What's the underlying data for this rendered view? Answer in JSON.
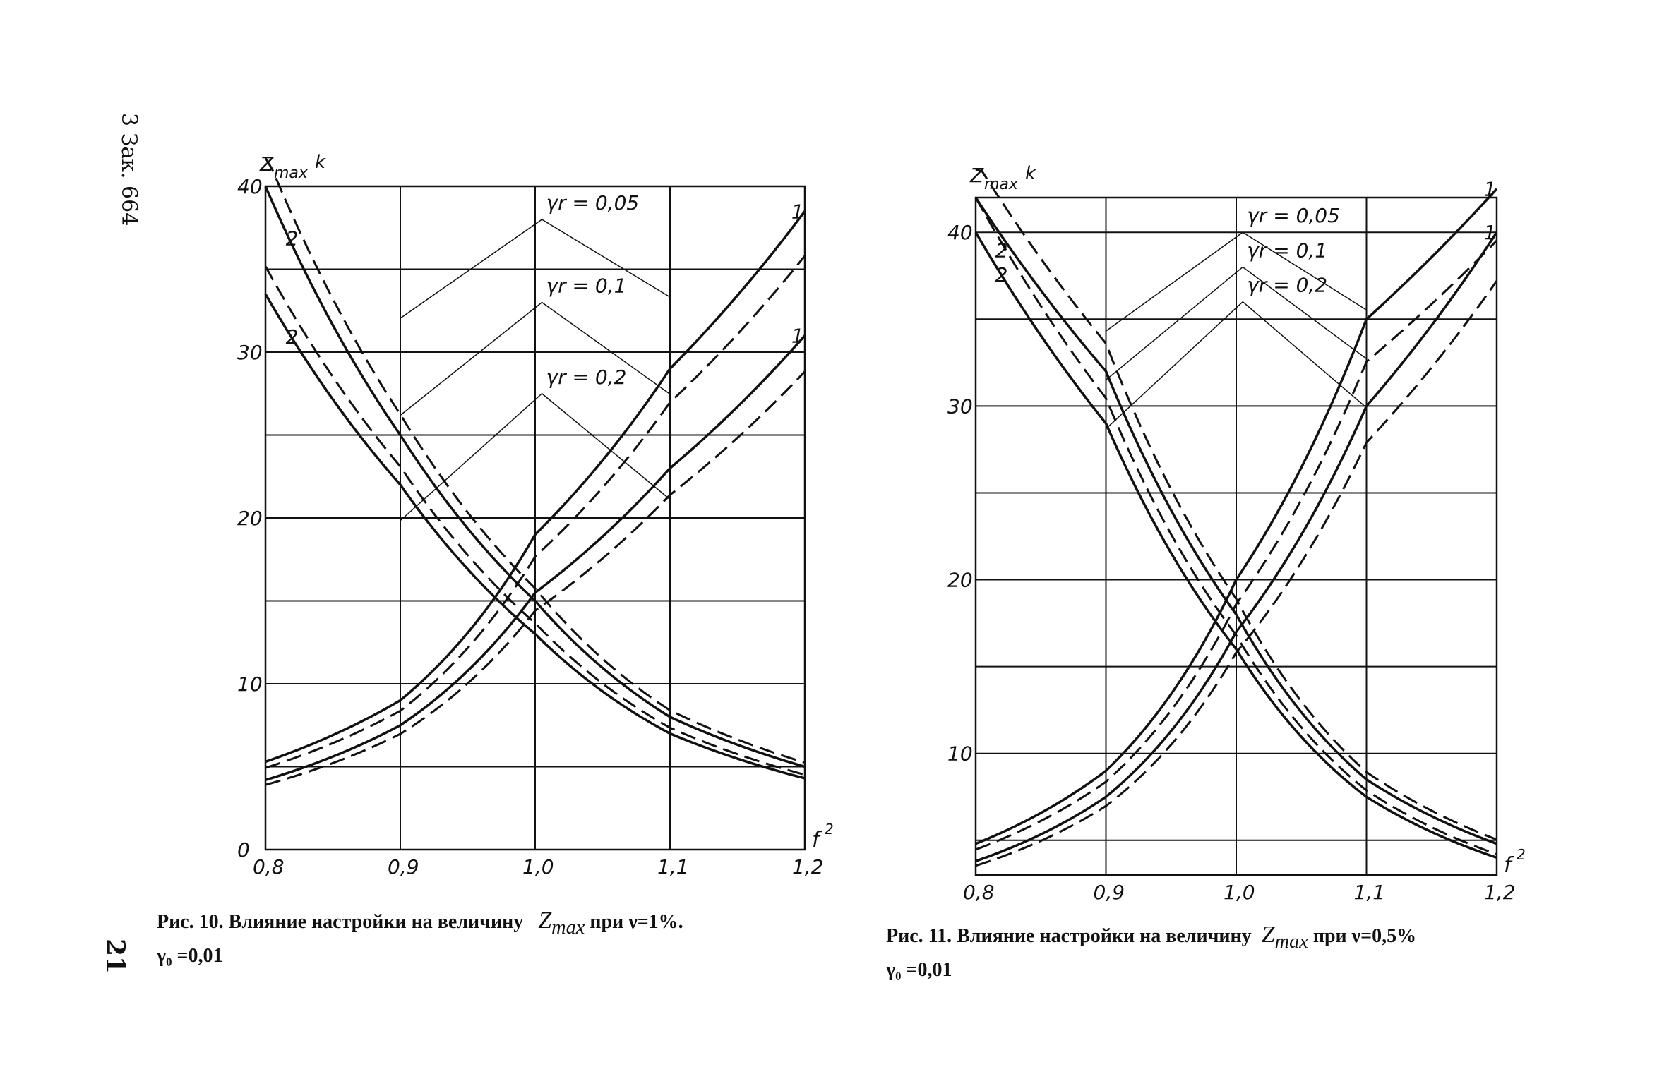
{
  "margin_note": "3 Зак. 664",
  "page_number": "21",
  "figures": [
    {
      "y_label": "Z",
      "y_label_sub": "max",
      "y_label_k": "k",
      "x_label": "f",
      "x_label_sup": "2",
      "x_ticks": [
        "0,8",
        "0,9",
        "1,0",
        "1,1",
        "1,2"
      ],
      "y_ticks": [
        "0",
        "10",
        "20",
        "30",
        "40"
      ],
      "param_labels": [
        "γr = 0,05",
        "γr = 0,1",
        "γr = 0,2"
      ],
      "curve_labels": [
        "1",
        "2"
      ],
      "caption_prefix": "Рис. 10. Влияние настройки на   величину",
      "caption_var": "Z",
      "caption_var_sub": "max",
      "caption_suffix": "при ν=1%.",
      "caption_line2": "γ₀ =0,01"
    },
    {
      "y_label": "Z",
      "y_label_sub": "max",
      "y_label_k": "k",
      "x_label": "f",
      "x_label_sup": "2",
      "x_ticks": [
        "0,8",
        "0,9",
        "1,0",
        "1,1",
        "1,2"
      ],
      "y_ticks": [
        "10",
        "20",
        "30",
        "40"
      ],
      "param_labels": [
        "γr = 0,05",
        "γr = 0,1",
        "γr = 0,2"
      ],
      "curve_labels": [
        "1",
        "2"
      ],
      "caption_prefix": "Рис. 11. Влияние настройки на величину",
      "caption_var": "Z",
      "caption_var_sub": "max",
      "caption_suffix": "при ν=0,5%",
      "caption_line2": "γ₀ =0,01"
    }
  ],
  "chart_data": [
    {
      "type": "line",
      "x_label": "f²",
      "y_label": "Zmax k",
      "xlim": [
        0.8,
        1.2
      ],
      "ylim": [
        0,
        40
      ],
      "grid": true,
      "series": [
        {
          "name": "1",
          "x": [
            0.8,
            0.9,
            1.0,
            1.1,
            1.2
          ],
          "y": [
            5.3,
            9.0,
            19.0,
            29.0,
            38.5
          ]
        },
        {
          "name": "1",
          "x": [
            0.8,
            0.9,
            1.0,
            1.1,
            1.2
          ],
          "y": [
            4.2,
            7.5,
            15.5,
            23.0,
            31.0
          ]
        },
        {
          "name": "2",
          "x": [
            0.8,
            0.9,
            1.0,
            1.1,
            1.2
          ],
          "y": [
            40.0,
            25.0,
            15.0,
            8.0,
            5.0
          ]
        },
        {
          "name": "2",
          "x": [
            0.8,
            0.9,
            1.0,
            1.1,
            1.2
          ],
          "y": [
            33.5,
            22.0,
            13.0,
            7.0,
            4.3
          ]
        }
      ]
    },
    {
      "type": "line",
      "x_label": "f²",
      "y_label": "Zmax k",
      "xlim": [
        0.8,
        1.2
      ],
      "ylim": [
        3,
        42
      ],
      "grid": true,
      "series": [
        {
          "name": "1",
          "x": [
            0.8,
            0.9,
            1.0,
            1.1,
            1.2
          ],
          "y": [
            4.8,
            9.0,
            20.0,
            35.0,
            42.5
          ]
        },
        {
          "name": "1",
          "x": [
            0.8,
            0.9,
            1.0,
            1.1,
            1.2
          ],
          "y": [
            3.8,
            7.5,
            17.0,
            30.0,
            40.0
          ]
        },
        {
          "name": "2",
          "x": [
            0.8,
            0.9,
            1.0,
            1.1,
            1.2
          ],
          "y": [
            42.0,
            32.0,
            18.0,
            8.5,
            4.8
          ]
        },
        {
          "name": "2",
          "x": [
            0.8,
            0.9,
            1.0,
            1.1,
            1.2
          ],
          "y": [
            40.0,
            29.0,
            16.0,
            7.5,
            4.0
          ]
        }
      ]
    }
  ]
}
